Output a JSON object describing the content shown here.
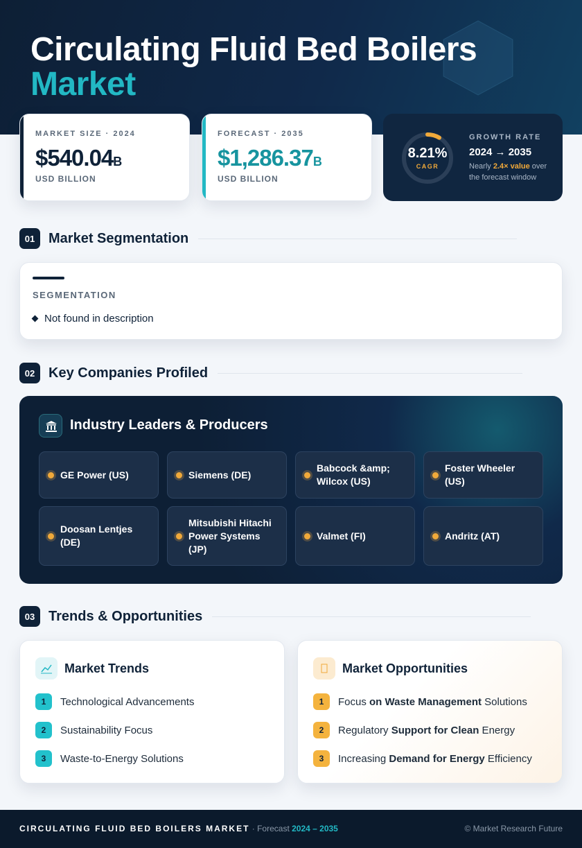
{
  "header": {
    "title_line1": "Circulating Fluid Bed Boilers",
    "title_line2": "Market"
  },
  "stats": [
    {
      "label": "MARKET SIZE · 2024",
      "value": "$540.04",
      "unit": "B",
      "sub": "USD BILLION"
    },
    {
      "label": "FORECAST · 2035",
      "value": "$1,286.37",
      "unit": "B",
      "sub": "USD BILLION"
    }
  ],
  "growth": {
    "value": "8.21%",
    "badge": "CAGR",
    "title": "GROWTH RATE",
    "range": "2024 → 2035",
    "note_pre": "Nearly ",
    "note_em": "2.4× value",
    "note_post": " over the forecast window"
  },
  "sections": [
    {
      "num": "01",
      "title": "Market Segmentation"
    },
    {
      "num": "02",
      "title": "Key Companies Profiled"
    },
    {
      "num": "03",
      "title": "Trends & Opportunities"
    }
  ],
  "segmentation": {
    "label": "SEGMENTATION",
    "items": [
      "Not found in description"
    ]
  },
  "companies": {
    "title": "Industry Leaders & Producers",
    "items": [
      "GE Power (US)",
      "Siemens (DE)",
      "Babcock &amp; Wilcox (US)",
      "Foster Wheeler (US)",
      "Doosan Lentjes (DE)",
      "Mitsubishi Hitachi Power Systems (JP)",
      "Valmet (FI)",
      "Andritz (AT)"
    ]
  },
  "trends": {
    "title": "Market Trends",
    "items": [
      {
        "n": "1",
        "text": "Technological Advancements"
      },
      {
        "n": "2",
        "text": "Sustainability Focus"
      },
      {
        "n": "3",
        "text": "Waste-to-Energy Solutions"
      }
    ]
  },
  "opportunities": {
    "title": "Market Opportunities",
    "items": [
      {
        "n": "1",
        "parts": [
          "Focus ",
          "on Waste Management",
          " Solutions"
        ]
      },
      {
        "n": "2",
        "parts": [
          "Regulatory ",
          "Support for Clean",
          " Energy"
        ]
      },
      {
        "n": "3",
        "parts": [
          "Increasing ",
          "Demand for Energy",
          " Efficiency"
        ]
      }
    ]
  },
  "footer": {
    "title": "CIRCULATING FLUID BED BOILERS MARKET",
    "sep": " · Forecast ",
    "years": "2024 – 2035",
    "credit": "© Market Research Future"
  }
}
